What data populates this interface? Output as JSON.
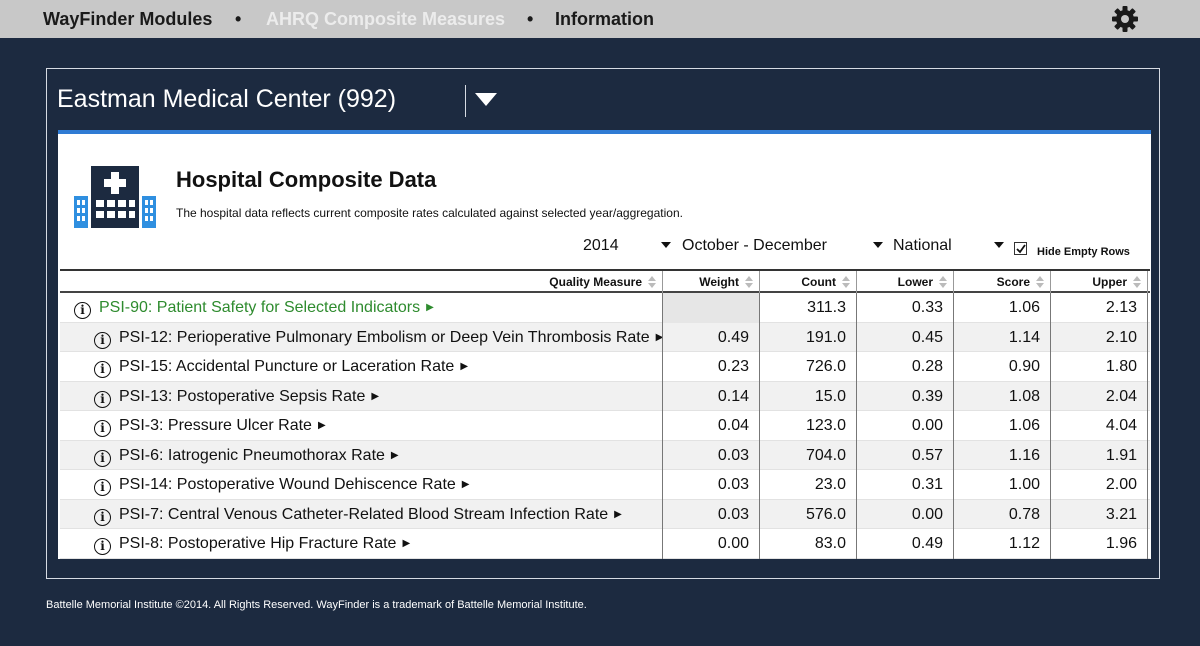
{
  "nav": {
    "items": [
      "WayFinder Modules",
      "AHRQ Composite Measures",
      "Information"
    ],
    "separator": "•",
    "settings_icon": "gear-icon"
  },
  "hospital": {
    "name": "Eastman Medical Center (992)"
  },
  "card": {
    "title": "Hospital Composite Data",
    "subtitle": "The hospital data reflects current composite rates calculated against selected year/aggregation.",
    "icon": "hospital-icon"
  },
  "filters": {
    "year": "2014",
    "period": "October - December",
    "comparison": "National",
    "hide_empty_label": "Hide Empty Rows",
    "hide_empty_checked": true
  },
  "table": {
    "columns": [
      "Quality Measure",
      "Weight",
      "Count",
      "Lower",
      "Score",
      "Upper"
    ],
    "rows": [
      {
        "measure": "PSI-90: Patient Safety for Selected Indicators",
        "weight": "",
        "count": "311.3",
        "lower": "0.33",
        "score": "1.06",
        "upper": "2.13"
      },
      {
        "measure": "PSI-12: Perioperative Pulmonary Embolism or Deep Vein Thrombosis Rate",
        "weight": "0.49",
        "count": "191.0",
        "lower": "0.45",
        "score": "1.14",
        "upper": "2.10"
      },
      {
        "measure": "PSI-15: Accidental Puncture or Laceration Rate",
        "weight": "0.23",
        "count": "726.0",
        "lower": "0.28",
        "score": "0.90",
        "upper": "1.80"
      },
      {
        "measure": "PSI-13: Postoperative Sepsis Rate",
        "weight": "0.14",
        "count": "15.0",
        "lower": "0.39",
        "score": "1.08",
        "upper": "2.04"
      },
      {
        "measure": "PSI-3: Pressure Ulcer Rate",
        "weight": "0.04",
        "count": "123.0",
        "lower": "0.00",
        "score": "1.06",
        "upper": "4.04"
      },
      {
        "measure": "PSI-6: Iatrogenic Pneumothorax Rate",
        "weight": "0.03",
        "count": "704.0",
        "lower": "0.57",
        "score": "1.16",
        "upper": "1.91"
      },
      {
        "measure": "PSI-14: Postoperative Wound Dehiscence Rate",
        "weight": "0.03",
        "count": "23.0",
        "lower": "0.31",
        "score": "1.00",
        "upper": "2.00"
      },
      {
        "measure": "PSI-7: Central Venous Catheter-Related Blood Stream Infection Rate",
        "weight": "0.03",
        "count": "576.0",
        "lower": "0.00",
        "score": "0.78",
        "upper": "3.21"
      },
      {
        "measure": "PSI-8: Postoperative Hip Fracture Rate",
        "weight": "0.00",
        "count": "83.0",
        "lower": "0.49",
        "score": "1.12",
        "upper": "1.96"
      }
    ]
  },
  "footer": {
    "text": "Battelle Memorial Institute ©2014. All Rights Reserved. WayFinder is a trademark of Battelle Memorial Institute."
  },
  "colors": {
    "background": "#1c2a40",
    "accent": "#2f7bd4",
    "parent_measure": "#2e8b2e",
    "nav_active": "#ececec"
  }
}
